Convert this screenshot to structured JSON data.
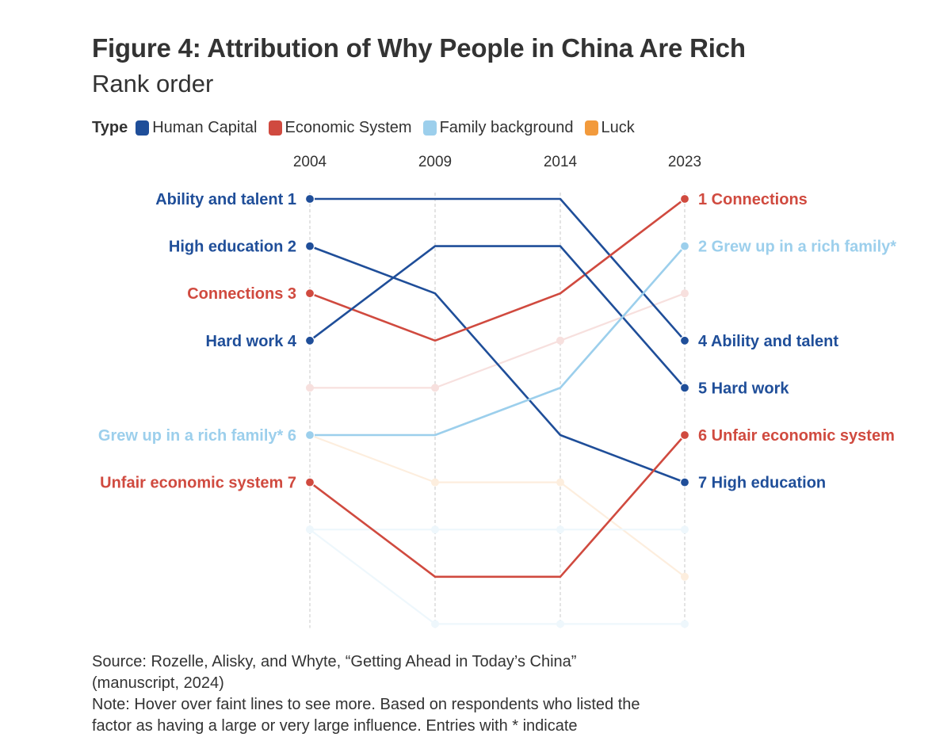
{
  "chart_data": {
    "type": "line",
    "title": "Figure 4: Attribution of Why People in China Are Rich",
    "subtitle": "Rank order",
    "legend_title": "Type",
    "legend_placement": "top-left",
    "legend": [
      {
        "name": "Human Capital",
        "color": "#1f4e99"
      },
      {
        "name": "Economic System",
        "color": "#d04a3f"
      },
      {
        "name": "Family background",
        "color": "#9ccfec"
      },
      {
        "name": "Luck",
        "color": "#f29a3c"
      }
    ],
    "x": [
      "2004",
      "2009",
      "2014",
      "2023"
    ],
    "y_axis": "rank (1 = top)",
    "series": [
      {
        "name": "Ability and talent",
        "type": "Human Capital",
        "values": [
          1,
          1,
          1,
          4
        ],
        "highlight": true,
        "left_label": "Ability and talent 1",
        "right_label": "4 Ability and talent"
      },
      {
        "name": "High education",
        "type": "Human Capital",
        "values": [
          2,
          3,
          6,
          7
        ],
        "highlight": true,
        "left_label": "High education 2",
        "right_label": "7 High education"
      },
      {
        "name": "Connections",
        "type": "Economic System",
        "values": [
          3,
          4,
          3,
          1
        ],
        "highlight": true,
        "left_label": "Connections 3",
        "right_label": "1 Connections"
      },
      {
        "name": "Hard work",
        "type": "Human Capital",
        "values": [
          4,
          2,
          2,
          5
        ],
        "highlight": true,
        "left_label": "Hard work 4",
        "right_label": "5 Hard work"
      },
      {
        "name": "Grew up in a rich family*",
        "type": "Family background",
        "values": [
          6,
          6,
          5,
          2
        ],
        "highlight": true,
        "left_label": "Grew up in a rich family* 6",
        "right_label": "2 Grew up in a rich family*"
      },
      {
        "name": "Unfair economic system",
        "type": "Economic System",
        "values": [
          7,
          9,
          9,
          6
        ],
        "highlight": true,
        "left_label": "Unfair economic system 7",
        "right_label": "6 Unfair economic system"
      },
      {
        "type": "Economic System",
        "values": [
          5,
          5,
          4,
          3
        ],
        "highlight": false
      },
      {
        "type": "Luck",
        "values": [
          6,
          7,
          7,
          9
        ],
        "highlight": false
      },
      {
        "type": "Family background",
        "values": [
          8,
          8,
          8,
          8
        ],
        "highlight": false
      },
      {
        "type": "Family background",
        "values": [
          8,
          10,
          10,
          10
        ],
        "highlight": false
      }
    ],
    "ylim": [
      1,
      10
    ],
    "grid": "vertical dashed at each year"
  },
  "footer": {
    "source": "Source: Rozelle, Alisky, and Whyte, “Getting Ahead in Today’s China” (manuscript, 2024)",
    "note": "Note: Hover over faint lines to see more. Based on respondents who listed the factor as having a large or very large influence. Entries with * indicate"
  }
}
